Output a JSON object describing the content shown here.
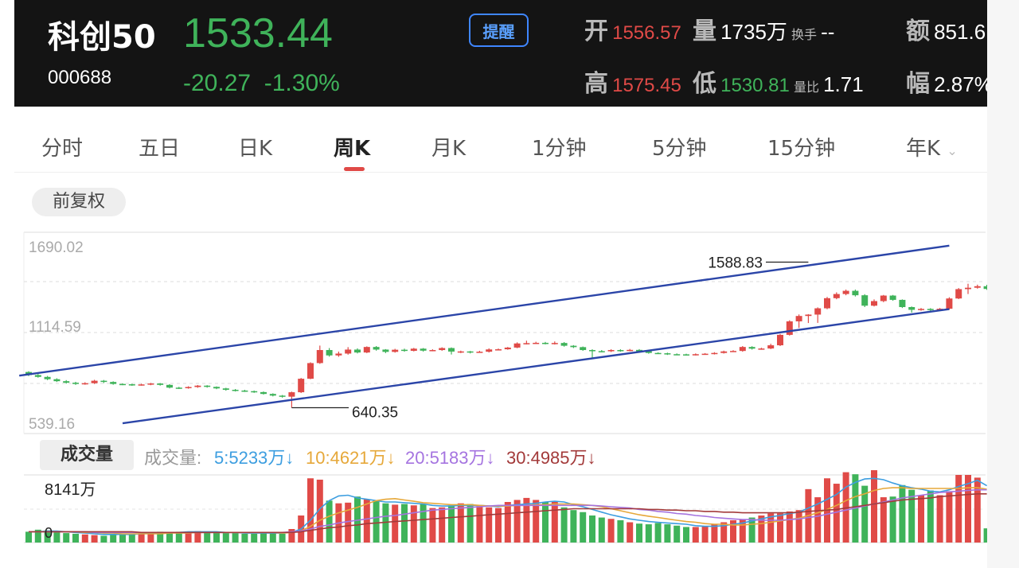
{
  "header": {
    "name": "科创50",
    "code": "000688",
    "price": "1533.44",
    "change": "-20.27",
    "change_pct": "-1.30%",
    "remind_label": "提醒",
    "open_label": "开",
    "open": "1556.57",
    "volume_label": "量",
    "volume": "1735万",
    "turnover_label": "换手",
    "turnover": "--",
    "amount_label": "额",
    "amount": "851.6",
    "high_label": "高",
    "high": "1575.45",
    "low_label": "低",
    "low": "1530.81",
    "ratio_label": "量比",
    "ratio": "1.71",
    "amplitude_label": "幅",
    "amplitude": "2.87%"
  },
  "tabs": [
    "分时",
    "五日",
    "日K",
    "周K",
    "月K",
    "1分钟",
    "5分钟",
    "15分钟",
    "年K"
  ],
  "active_tab": "周K",
  "adjust_label": "前复权",
  "volume_section": {
    "label": "成交量",
    "title": "成交量:",
    "ma": [
      {
        "text": "5:5233万↓",
        "color": "#3d9ee0"
      },
      {
        "text": "10:4621万↓",
        "color": "#e6a83a"
      },
      {
        "text": "20:5183万↓",
        "color": "#a574e0"
      },
      {
        "text": "30:4985万↓",
        "color": "#a33a3a"
      }
    ],
    "max_label": "8141万",
    "zero_label": "0"
  },
  "colors": {
    "up": "#e04a47",
    "down": "#3fb35a",
    "channel": "#2b45a8",
    "bg_header": "#141414"
  },
  "chart_data": {
    "type": "candlestick",
    "y_ticks": [
      "1690.02",
      "1114.59",
      "539.16"
    ],
    "ylim": [
      539.16,
      1690.02
    ],
    "annotations": [
      {
        "label": "1588.83",
        "x_index": 83,
        "value": 1588.83
      },
      {
        "label": "640.35",
        "x_index": 28,
        "value": 640.35
      }
    ],
    "channel_lines": [
      {
        "name": "upper",
        "from": {
          "x_index": -1,
          "value": 849
        },
        "to": {
          "x_index": 98,
          "value": 1696
        }
      },
      {
        "name": "lower",
        "from": {
          "x_index": 10,
          "value": 539
        },
        "to": {
          "x_index": 98,
          "value": 1283
        }
      }
    ],
    "candles": [
      [
        873,
        853,
        878,
        846
      ],
      [
        853,
        841,
        860,
        836
      ],
      [
        841,
        826,
        847,
        820
      ],
      [
        826,
        813,
        832,
        808
      ],
      [
        813,
        803,
        820,
        797
      ],
      [
        803,
        795,
        809,
        789
      ],
      [
        795,
        800,
        806,
        790
      ],
      [
        800,
        816,
        822,
        795
      ],
      [
        816,
        808,
        821,
        801
      ],
      [
        808,
        795,
        812,
        790
      ],
      [
        795,
        793,
        799,
        787
      ],
      [
        793,
        788,
        797,
        783
      ],
      [
        788,
        792,
        796,
        784
      ],
      [
        792,
        798,
        802,
        787
      ],
      [
        798,
        789,
        801,
        784
      ],
      [
        789,
        771,
        794,
        766
      ],
      [
        771,
        768,
        776,
        762
      ],
      [
        768,
        775,
        780,
        764
      ],
      [
        775,
        784,
        788,
        770
      ],
      [
        784,
        776,
        787,
        771
      ],
      [
        776,
        766,
        779,
        761
      ],
      [
        766,
        757,
        770,
        751
      ],
      [
        757,
        752,
        762,
        746
      ],
      [
        752,
        748,
        757,
        743
      ],
      [
        748,
        742,
        752,
        737
      ],
      [
        742,
        730,
        746,
        726
      ],
      [
        730,
        719,
        734,
        714
      ],
      [
        719,
        712,
        723,
        706
      ],
      [
        712,
        741,
        745,
        640
      ],
      [
        741,
        829,
        834,
        736
      ],
      [
        829,
        931,
        936,
        826
      ],
      [
        931,
        1016,
        1045,
        926
      ],
      [
        1016,
        981,
        1029,
        973
      ],
      [
        981,
        993,
        1006,
        972
      ],
      [
        993,
        1019,
        1035,
        986
      ],
      [
        1019,
        1000,
        1027,
        994
      ],
      [
        1000,
        1036,
        1040,
        996
      ],
      [
        1036,
        1019,
        1042,
        1012
      ],
      [
        1019,
        1004,
        1022,
        996
      ],
      [
        1004,
        1018,
        1024,
        999
      ],
      [
        1018,
        1011,
        1025,
        1005
      ],
      [
        1011,
        1025,
        1030,
        1007
      ],
      [
        1025,
        1012,
        1029,
        1006
      ],
      [
        1012,
        1016,
        1021,
        1008
      ],
      [
        1016,
        1029,
        1034,
        1011
      ],
      [
        1029,
        1006,
        1033,
        987
      ],
      [
        1006,
        1007,
        1012,
        996
      ],
      [
        1007,
        1002,
        1010,
        994
      ],
      [
        1002,
        1005,
        1011,
        998
      ],
      [
        1005,
        1020,
        1027,
        1000
      ],
      [
        1020,
        1021,
        1026,
        1014
      ],
      [
        1021,
        1032,
        1036,
        1018
      ],
      [
        1032,
        1059,
        1066,
        1028
      ],
      [
        1059,
        1061,
        1077,
        1053
      ],
      [
        1061,
        1063,
        1070,
        1057
      ],
      [
        1063,
        1057,
        1069,
        1053
      ],
      [
        1057,
        1062,
        1072,
        1052
      ],
      [
        1062,
        1044,
        1068,
        1038
      ],
      [
        1044,
        1035,
        1048,
        1029
      ],
      [
        1035,
        1016,
        1039,
        1011
      ],
      [
        1016,
        1009,
        1021,
        960
      ],
      [
        1009,
        1008,
        1016,
        1002
      ],
      [
        1008,
        1016,
        1021,
        1003
      ],
      [
        1016,
        1012,
        1021,
        1005
      ],
      [
        1012,
        1017,
        1023,
        1008
      ],
      [
        1017,
        1008,
        1022,
        1003
      ],
      [
        1008,
        997,
        1012,
        992
      ],
      [
        997,
        995,
        1001,
        990
      ],
      [
        995,
        989,
        999,
        984
      ],
      [
        989,
        988,
        994,
        983
      ],
      [
        988,
        985,
        992,
        980
      ],
      [
        985,
        989,
        994,
        981
      ],
      [
        989,
        992,
        996,
        985
      ],
      [
        992,
        997,
        1002,
        987
      ],
      [
        997,
        1007,
        1012,
        993
      ],
      [
        1007,
        1010,
        1015,
        1004
      ],
      [
        1010,
        1036,
        1042,
        1005
      ],
      [
        1036,
        1025,
        1041,
        1019
      ],
      [
        1025,
        1026,
        1031,
        1018
      ],
      [
        1026,
        1047,
        1057,
        1022
      ],
      [
        1047,
        1115,
        1121,
        1042
      ],
      [
        1115,
        1203,
        1210,
        1110
      ],
      [
        1203,
        1238,
        1248,
        1160
      ],
      [
        1238,
        1247,
        1250,
        1192
      ],
      [
        1247,
        1288,
        1294,
        1193
      ],
      [
        1288,
        1354,
        1362,
        1282
      ],
      [
        1354,
        1381,
        1392,
        1347
      ],
      [
        1381,
        1402,
        1410,
        1373
      ],
      [
        1402,
        1373,
        1410,
        1365
      ],
      [
        1373,
        1305,
        1380,
        1296
      ],
      [
        1305,
        1335,
        1346,
        1300
      ],
      [
        1335,
        1371,
        1375,
        1328
      ],
      [
        1371,
        1343,
        1375,
        1337
      ],
      [
        1343,
        1296,
        1346,
        1290
      ],
      [
        1296,
        1278,
        1300,
        1260
      ],
      [
        1278,
        1284,
        1290,
        1272
      ],
      [
        1284,
        1276,
        1289,
        1270
      ],
      [
        1276,
        1285,
        1290,
        1270
      ],
      [
        1285,
        1352,
        1360,
        1280
      ],
      [
        1352,
        1413,
        1420,
        1348
      ],
      [
        1413,
        1422,
        1448,
        1381
      ],
      [
        1422,
        1432,
        1442,
        1416
      ],
      [
        1432,
        1414,
        1441,
        1408
      ]
    ],
    "volumes": [
      16,
      19,
      18,
      16,
      14,
      13,
      12,
      11,
      10,
      12,
      13,
      13,
      14,
      14,
      16,
      15,
      16,
      16,
      17,
      15,
      15,
      14,
      14,
      13,
      13,
      14,
      14,
      13,
      20,
      40,
      95,
      93,
      62,
      58,
      59,
      68,
      64,
      62,
      58,
      56,
      57,
      55,
      57,
      51,
      52,
      55,
      58,
      57,
      54,
      52,
      51,
      60,
      63,
      66,
      63,
      60,
      60,
      52,
      48,
      45,
      40,
      37,
      35,
      33,
      30,
      28,
      27,
      29,
      27,
      25,
      23,
      23,
      24,
      27,
      30,
      33,
      34,
      37,
      40,
      43,
      43,
      46,
      48,
      79,
      67,
      95,
      87,
      104,
      101,
      84,
      107,
      67,
      68,
      85,
      78,
      70,
      77,
      70,
      76,
      100,
      100,
      96,
      21
    ],
    "ma_lines": [
      {
        "name": "5",
        "values": [
          16,
          16,
          17,
          17,
          16,
          15,
          14,
          13,
          12,
          12,
          12,
          12,
          13,
          14,
          15,
          15,
          15,
          16,
          16,
          16,
          16,
          15,
          15,
          14,
          14,
          14,
          14,
          14,
          15,
          20,
          33,
          50,
          62,
          69,
          70,
          66,
          64,
          62,
          60,
          60,
          59,
          58,
          57,
          55,
          54,
          54,
          55,
          55,
          55,
          54,
          53,
          55,
          56,
          57,
          58,
          60,
          61,
          60,
          56,
          53,
          49,
          45,
          41,
          38,
          35,
          33,
          31,
          30,
          29,
          28,
          27,
          25,
          24,
          24,
          25,
          27,
          29,
          32,
          35,
          38,
          40,
          43,
          45,
          51,
          57,
          64,
          71,
          82,
          89,
          94,
          95,
          93,
          88,
          84,
          81,
          79,
          76,
          75,
          78,
          83,
          87,
          92,
          84
        ]
      },
      {
        "name": "10",
        "values": [
          16,
          16,
          16,
          16,
          16,
          16,
          15,
          15,
          14,
          14,
          13,
          13,
          13,
          13,
          13,
          14,
          14,
          14,
          15,
          15,
          15,
          15,
          15,
          15,
          15,
          15,
          15,
          14,
          15,
          17,
          24,
          33,
          39,
          44,
          48,
          52,
          57,
          62,
          64,
          65,
          63,
          61,
          59,
          58,
          57,
          56,
          56,
          56,
          55,
          54,
          54,
          54,
          55,
          55,
          56,
          56,
          57,
          57,
          57,
          56,
          55,
          53,
          50,
          47,
          44,
          41,
          39,
          37,
          35,
          33,
          31,
          30,
          28,
          27,
          27,
          26,
          26,
          27,
          28,
          30,
          32,
          34,
          36,
          40,
          44,
          49,
          55,
          62,
          68,
          72,
          77,
          80,
          81,
          81,
          80,
          80,
          80,
          80,
          80,
          80,
          81,
          81,
          79
        ]
      },
      {
        "name": "20",
        "values": [
          16,
          16,
          16,
          16,
          16,
          16,
          16,
          15,
          15,
          15,
          15,
          15,
          15,
          15,
          15,
          15,
          15,
          15,
          15,
          15,
          15,
          15,
          15,
          15,
          15,
          15,
          15,
          15,
          16,
          17,
          20,
          24,
          26,
          29,
          31,
          33,
          35,
          37,
          39,
          40,
          42,
          44,
          46,
          48,
          49,
          50,
          51,
          52,
          53,
          54,
          55,
          55,
          55,
          55,
          55,
          55,
          55,
          55,
          55,
          55,
          55,
          54,
          53,
          52,
          51,
          49,
          48,
          46,
          45,
          43,
          42,
          40,
          39,
          37,
          36,
          35,
          34,
          34,
          33,
          33,
          33,
          34,
          35,
          37,
          39,
          42,
          45,
          48,
          51,
          54,
          57,
          60,
          63,
          66,
          68,
          70,
          72,
          74,
          75,
          76,
          77,
          78,
          78
        ]
      },
      {
        "name": "30",
        "values": [
          16,
          16,
          16,
          16,
          16,
          16,
          16,
          16,
          16,
          16,
          16,
          16,
          15,
          15,
          15,
          15,
          15,
          15,
          15,
          15,
          15,
          15,
          15,
          15,
          15,
          15,
          15,
          15,
          15,
          16,
          18,
          20,
          22,
          23,
          25,
          26,
          28,
          29,
          30,
          31,
          32,
          33,
          34,
          35,
          36,
          37,
          38,
          39,
          40,
          41,
          42,
          43,
          44,
          45,
          46,
          47,
          48,
          49,
          50,
          50,
          50,
          50,
          50,
          50,
          50,
          50,
          49,
          49,
          48,
          48,
          47,
          47,
          46,
          46,
          45,
          45,
          44,
          44,
          44,
          44,
          44,
          44,
          45,
          46,
          47,
          48,
          49,
          51,
          53,
          55,
          57,
          59,
          61,
          63,
          64,
          65,
          66,
          68,
          69,
          70,
          71,
          72,
          72
        ]
      }
    ]
  }
}
